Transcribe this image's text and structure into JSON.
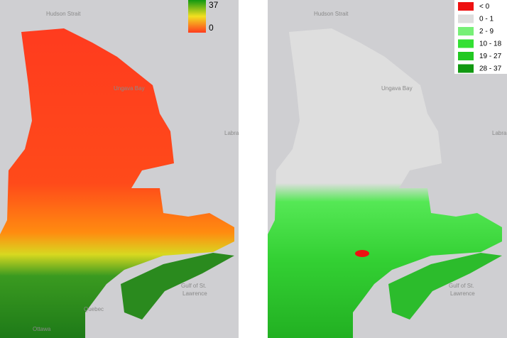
{
  "left_map": {
    "labels": [
      "Hudson Strait",
      "Ungava Bay",
      "Labra",
      "Gulf of St.",
      "Lawrence",
      "Quebec",
      "Ottawa"
    ],
    "legend": {
      "max": "37",
      "min": "0"
    }
  },
  "right_map": {
    "labels": [
      "Hudson Strait",
      "Ungava Bay",
      "Labra",
      "Gulf of St.",
      "Lawrence"
    ],
    "legend": [
      {
        "label": "< 0",
        "color": "#ee1111"
      },
      {
        "label": "0 - 1",
        "color": "#dedede"
      },
      {
        "label": "2 - 9",
        "color": "#77f077"
      },
      {
        "label": "10 - 18",
        "color": "#33e033"
      },
      {
        "label": "19 - 27",
        "color": "#22c822"
      },
      {
        "label": "28 - 37",
        "color": "#119911"
      }
    ]
  }
}
